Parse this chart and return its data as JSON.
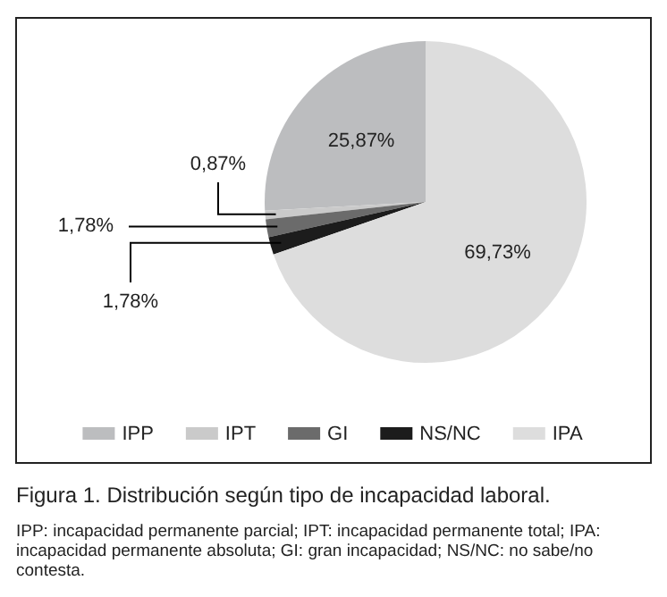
{
  "chart_data": {
    "type": "pie",
    "title": "Figura 1. Distribución según tipo de incapacidad laboral.",
    "categories": [
      "IPP",
      "IPT",
      "GI",
      "NS/NC",
      "IPA"
    ],
    "values": [
      25.87,
      0.87,
      1.78,
      1.78,
      69.73
    ],
    "colors": [
      "#bcbdbf",
      "#cacaca",
      "#6b6b6b",
      "#1c1c1c",
      "#dddddd"
    ],
    "value_labels": [
      "25,87%",
      "0,87%",
      "1,78%",
      "1,78%",
      "69,73%"
    ],
    "legend": "bottom",
    "annotations": [
      "IPP: incapacidad permanente parcial; IPT: incapacidad permanente total; IPA: incapacidad permanente absoluta; GI: gran incapacidad; NS/NC: no sabe/no contesta."
    ]
  }
}
